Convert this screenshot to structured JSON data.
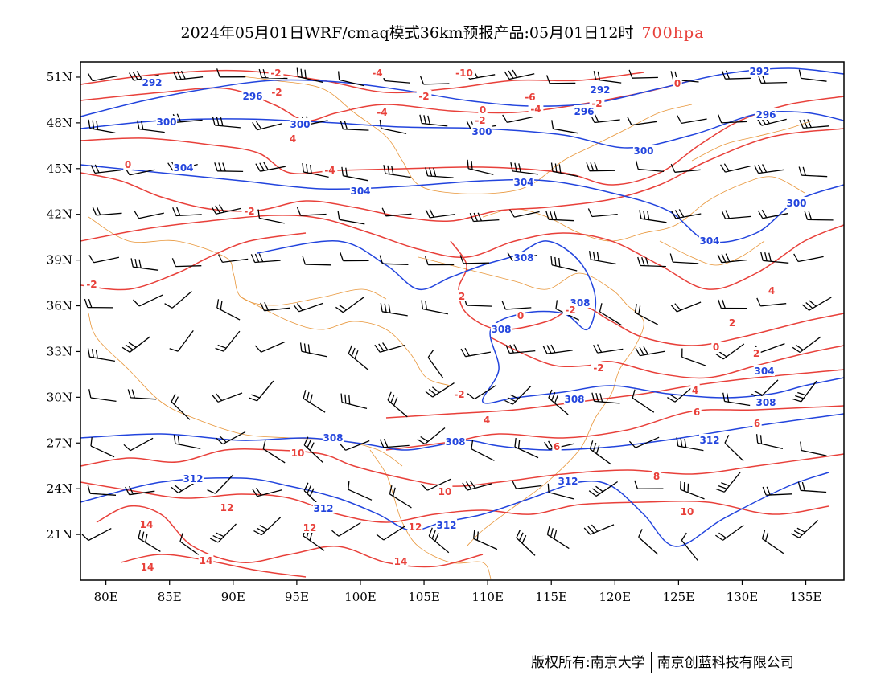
{
  "title": {
    "text": "2024年05月01日WRF/cmaq模式36km预报产品:05月01日12时",
    "level": "700hpa",
    "level_color": "#e8403a"
  },
  "map": {
    "lon_range": [
      78,
      138
    ],
    "lat_range": [
      18,
      52
    ],
    "x_ticks": [
      "80E",
      "85E",
      "90E",
      "95E",
      "100E",
      "105E",
      "110E",
      "115E",
      "120E",
      "125E",
      "130E",
      "135E"
    ],
    "y_ticks": [
      "51N",
      "48N",
      "45N",
      "42N",
      "39N",
      "36N",
      "33N",
      "30N",
      "27N",
      "24N",
      "21N"
    ],
    "colors": {
      "temperature": "#e8403a",
      "geopotential_height": "#2244dd",
      "boundaries": "#e8963a",
      "wind_barbs": "#000000"
    },
    "blue_labels": [
      "292",
      "296",
      "300",
      "304",
      "308",
      "312"
    ],
    "red_labels": [
      "-10",
      "-6",
      "-4",
      "-2",
      "0",
      "2",
      "4",
      "6",
      "8",
      "10",
      "12",
      "14"
    ]
  },
  "footer": {
    "left": "版权所有:南京大学",
    "right": "南京创蓝科技有限公司"
  }
}
